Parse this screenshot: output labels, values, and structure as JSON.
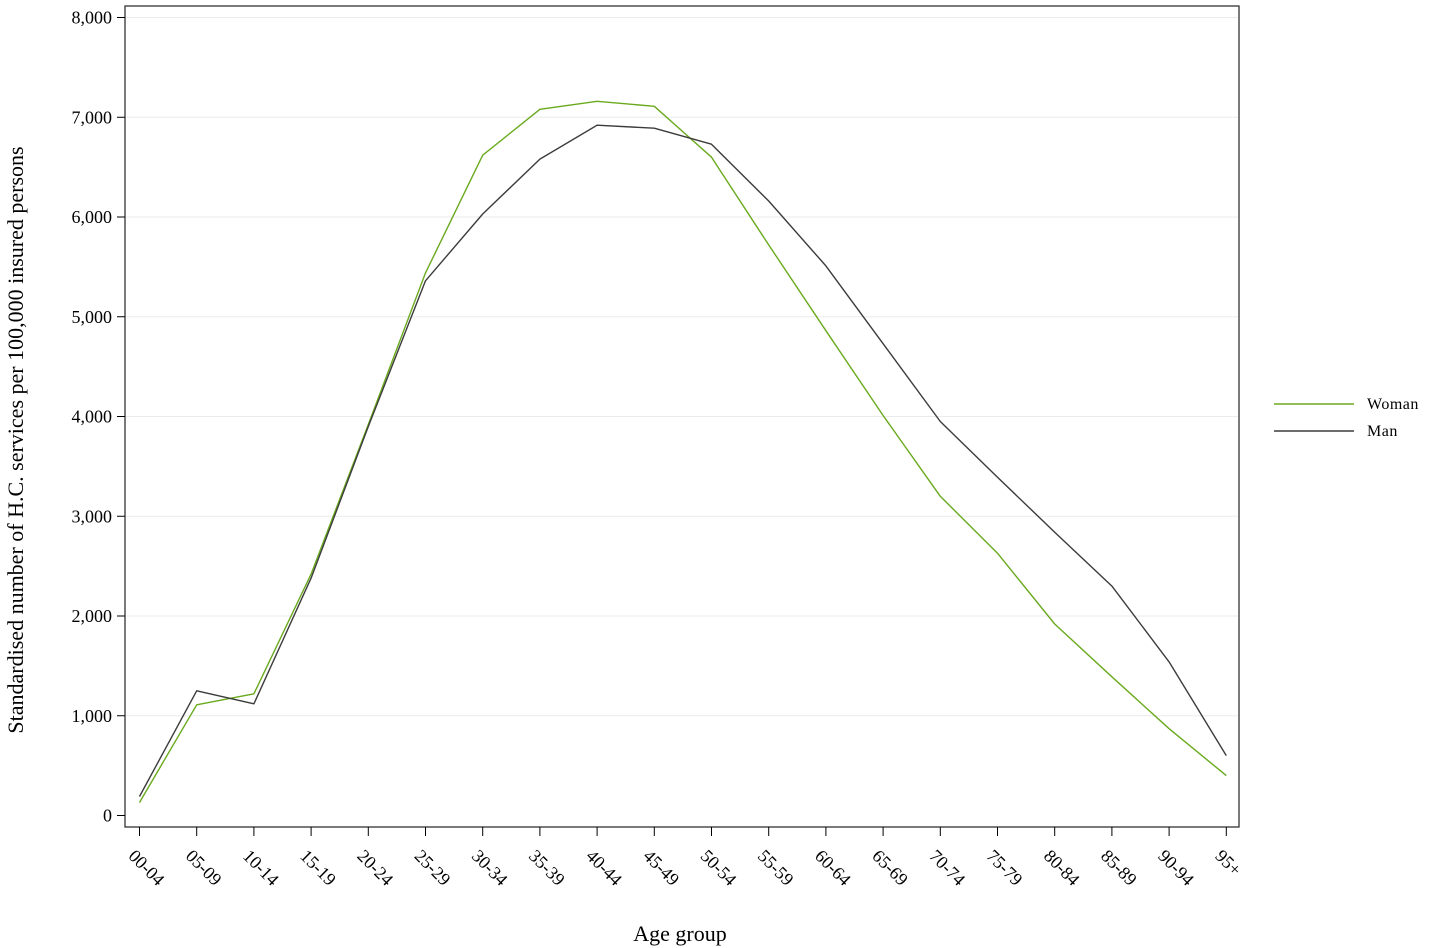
{
  "chart_data": {
    "type": "line",
    "title": "",
    "xlabel": "Age group",
    "ylabel": "Standardised number of H.C. services per 100,000 insured persons",
    "categories": [
      "00-04",
      "05-09",
      "10-14",
      "15-19",
      "20-24",
      "25-29",
      "30-34",
      "35-39",
      "40-44",
      "45-49",
      "50-54",
      "55-59",
      "60-64",
      "65-69",
      "70-74",
      "75-79",
      "80-84",
      "85-89",
      "90-94",
      "95+"
    ],
    "ylim": [
      0,
      8000
    ],
    "yticks": [
      0,
      1000,
      2000,
      3000,
      4000,
      5000,
      6000,
      7000,
      8000
    ],
    "ytick_labels": [
      "0",
      "1,000",
      "2,000",
      "3,000",
      "4,000",
      "5,000",
      "6,000",
      "7,000",
      "8,000"
    ],
    "grid": true,
    "legend_position": "right",
    "series": [
      {
        "name": "Woman",
        "color": "#6aaa1e",
        "values": [
          130,
          1110,
          1220,
          2420,
          3920,
          5440,
          6620,
          7080,
          7160,
          7110,
          6600,
          5720,
          4860,
          4010,
          3200,
          2630,
          1920,
          1390,
          870,
          400
        ]
      },
      {
        "name": "Man",
        "color": "#3c3c3c",
        "values": [
          190,
          1250,
          1120,
          2380,
          3900,
          5360,
          6030,
          6580,
          6920,
          6890,
          6730,
          6160,
          5510,
          4730,
          3950,
          3390,
          2840,
          2300,
          1540,
          600
        ]
      }
    ]
  }
}
